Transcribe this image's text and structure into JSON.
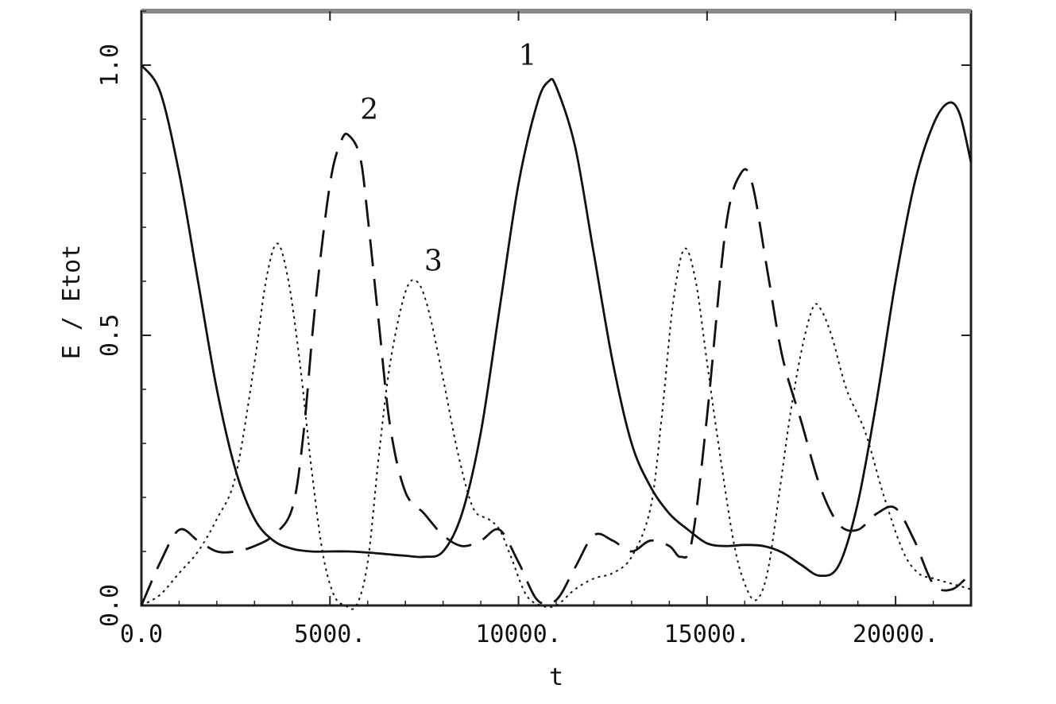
{
  "chart_data": {
    "type": "line",
    "xlabel": "t",
    "ylabel": "E / Etot",
    "xlim": [
      0,
      22000
    ],
    "ylim": [
      0,
      1.1
    ],
    "x_ticks": [
      0,
      5000,
      10000,
      15000,
      20000
    ],
    "x_tick_labels": [
      "0.0",
      "5000.",
      "10000.",
      "15000.",
      "20000."
    ],
    "y_ticks": [
      0,
      0.5,
      1.0
    ],
    "y_tick_labels": [
      "0.0",
      "0.5",
      "1.0"
    ],
    "grid": false,
    "series": [
      {
        "name": "1",
        "style": "solid",
        "color": "#111111",
        "label_at": [
          10000,
          1.0
        ],
        "x": [
          0,
          500,
          1000,
          1500,
          2000,
          2500,
          3000,
          3500,
          4000,
          4500,
          5000,
          5500,
          6000,
          6500,
          7000,
          7500,
          8000,
          8500,
          9000,
          9500,
          10000,
          10500,
          10800,
          11000,
          11500,
          12000,
          12500,
          13000,
          13500,
          14000,
          14500,
          15000,
          15500,
          16000,
          16500,
          17000,
          17500,
          18000,
          18500,
          19000,
          19500,
          20000,
          20500,
          21000,
          21400,
          21700,
          22000
        ],
        "y": [
          1.0,
          0.95,
          0.8,
          0.6,
          0.4,
          0.25,
          0.16,
          0.12,
          0.105,
          0.1,
          0.1,
          0.1,
          0.098,
          0.095,
          0.092,
          0.09,
          0.1,
          0.17,
          0.32,
          0.55,
          0.78,
          0.93,
          0.97,
          0.96,
          0.85,
          0.65,
          0.45,
          0.3,
          0.22,
          0.17,
          0.14,
          0.115,
          0.11,
          0.112,
          0.11,
          0.098,
          0.075,
          0.055,
          0.075,
          0.19,
          0.38,
          0.6,
          0.78,
          0.89,
          0.93,
          0.91,
          0.82
        ]
      },
      {
        "name": "2",
        "style": "dashed",
        "color": "#111111",
        "label_at": [
          5800,
          0.9
        ],
        "x": [
          0,
          500,
          1000,
          1500,
          2000,
          2500,
          3000,
          3500,
          4000,
          4300,
          4600,
          5000,
          5300,
          5500,
          5800,
          6000,
          6300,
          6600,
          7000,
          7500,
          8000,
          8500,
          9000,
          9500,
          10000,
          10500,
          11000,
          11500,
          12000,
          12500,
          13000,
          13500,
          14000,
          14300,
          14600,
          15000,
          15500,
          15900,
          16200,
          16600,
          17000,
          17500,
          18000,
          18500,
          19000,
          19500,
          20000,
          20500,
          21000,
          21500,
          22000
        ],
        "y": [
          0.0,
          0.08,
          0.14,
          0.12,
          0.1,
          0.1,
          0.11,
          0.13,
          0.18,
          0.32,
          0.55,
          0.78,
          0.86,
          0.87,
          0.83,
          0.72,
          0.52,
          0.33,
          0.21,
          0.17,
          0.13,
          0.11,
          0.12,
          0.14,
          0.08,
          0.01,
          0.01,
          0.07,
          0.13,
          0.12,
          0.1,
          0.12,
          0.11,
          0.09,
          0.12,
          0.35,
          0.7,
          0.8,
          0.78,
          0.62,
          0.46,
          0.34,
          0.22,
          0.15,
          0.14,
          0.17,
          0.18,
          0.12,
          0.04,
          0.03,
          0.06
        ]
      },
      {
        "name": "3",
        "style": "dotted",
        "color": "#111111",
        "label_at": [
          7500,
          0.62
        ],
        "x": [
          0,
          500,
          1000,
          1500,
          2000,
          2500,
          3000,
          3300,
          3600,
          3900,
          4200,
          4500,
          4800,
          5100,
          5400,
          5700,
          6000,
          6300,
          6600,
          7000,
          7300,
          7600,
          8000,
          8400,
          8800,
          9200,
          9500,
          9800,
          10200,
          10600,
          11000,
          11500,
          12000,
          12500,
          13000,
          13500,
          13800,
          14100,
          14400,
          14700,
          15000,
          15300,
          15700,
          16000,
          16300,
          16600,
          16900,
          17200,
          17500,
          17800,
          18000,
          18300,
          18700,
          19200,
          19700,
          20200,
          20600,
          21000,
          21500,
          22000
        ],
        "y": [
          0.0,
          0.02,
          0.06,
          0.1,
          0.16,
          0.24,
          0.45,
          0.6,
          0.67,
          0.6,
          0.45,
          0.26,
          0.1,
          0.02,
          0.0,
          0.0,
          0.08,
          0.28,
          0.45,
          0.58,
          0.6,
          0.55,
          0.42,
          0.28,
          0.18,
          0.16,
          0.14,
          0.09,
          0.02,
          0.0,
          0.0,
          0.03,
          0.05,
          0.06,
          0.09,
          0.18,
          0.35,
          0.56,
          0.66,
          0.6,
          0.45,
          0.3,
          0.12,
          0.04,
          0.01,
          0.06,
          0.2,
          0.35,
          0.47,
          0.55,
          0.55,
          0.5,
          0.4,
          0.32,
          0.2,
          0.1,
          0.06,
          0.05,
          0.04,
          0.03
        ]
      }
    ]
  }
}
